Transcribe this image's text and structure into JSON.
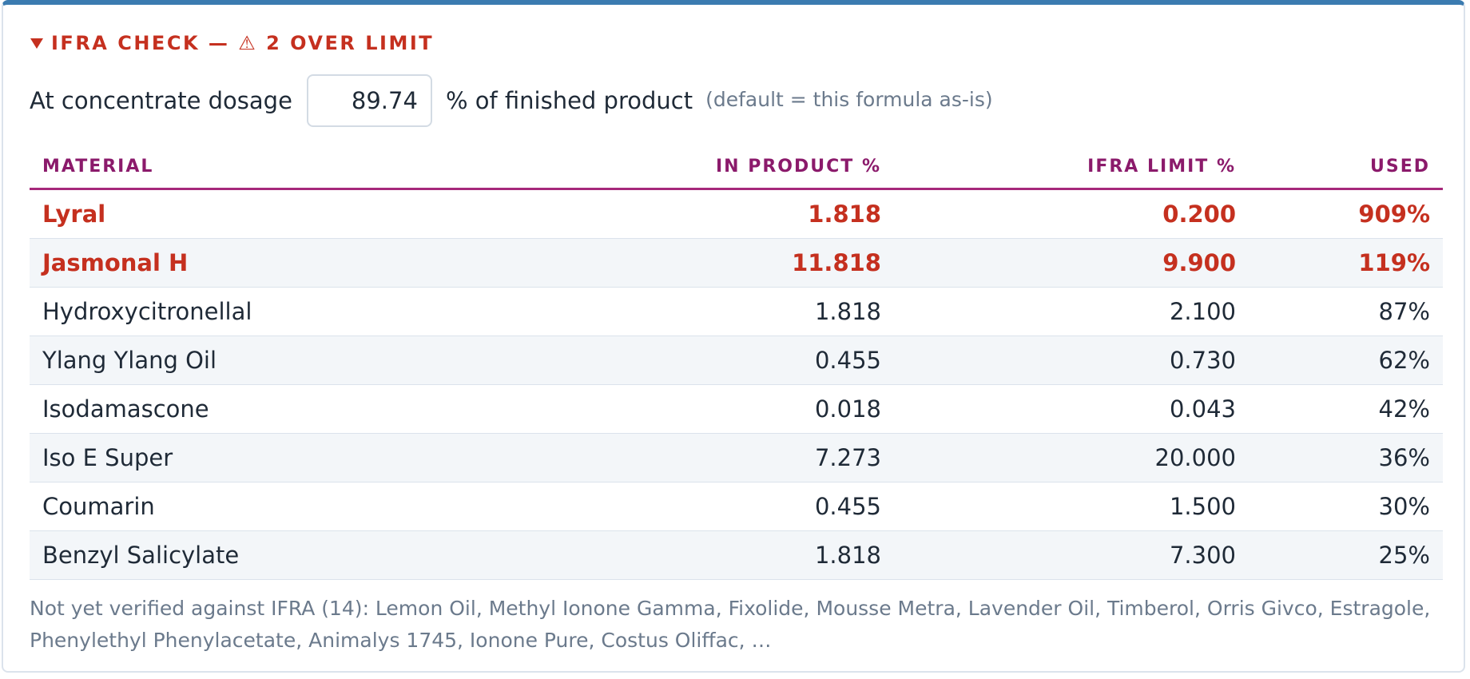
{
  "panel": {
    "title": "IFRA CHECK — ⚠ 2 OVER LIMIT",
    "dosage": {
      "label": "At concentrate dosage",
      "value": "89.74",
      "unit": "% of finished product",
      "hint": "(default = this formula as-is)"
    },
    "table": {
      "headers": [
        "MATERIAL",
        "IN PRODUCT %",
        "IFRA LIMIT %",
        "USED"
      ],
      "rows": [
        {
          "cells": [
            "Lyral",
            "1.818",
            "0.200",
            "909%"
          ],
          "over_limit": true
        },
        {
          "cells": [
            "Jasmonal H",
            "11.818",
            "9.900",
            "119%"
          ],
          "over_limit": true
        },
        {
          "cells": [
            "Hydroxycitronellal",
            "1.818",
            "2.100",
            "87%"
          ],
          "over_limit": false
        },
        {
          "cells": [
            "Ylang Ylang Oil",
            "0.455",
            "0.730",
            "62%"
          ],
          "over_limit": false
        },
        {
          "cells": [
            "Isodamascone",
            "0.018",
            "0.043",
            "42%"
          ],
          "over_limit": false
        },
        {
          "cells": [
            "Iso E Super",
            "7.273",
            "20.000",
            "36%"
          ],
          "over_limit": false
        },
        {
          "cells": [
            "Coumarin",
            "0.455",
            "1.500",
            "30%"
          ],
          "over_limit": false
        },
        {
          "cells": [
            "Benzyl Salicylate",
            "1.818",
            "7.300",
            "25%"
          ],
          "over_limit": false
        }
      ]
    },
    "note": "Not yet verified against IFRA (14): Lemon Oil, Methyl Ionone Gamma, Fixolide, Mousse Metra, Lavender Oil, Timberol, Orris Givco, Estragole, Phenylethyl Phenylacetate, Animalys 1745, Ionone Pure, Costus Oliffac, …"
  }
}
